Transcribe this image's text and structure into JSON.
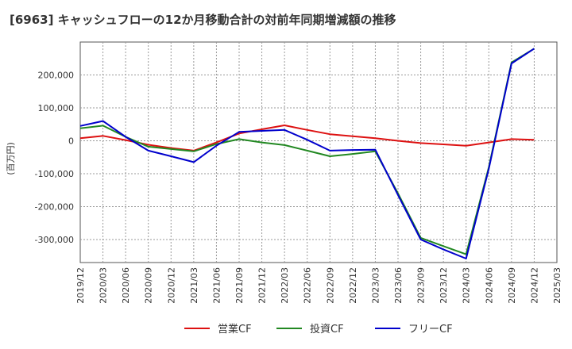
{
  "chart_data": {
    "type": "line",
    "title": "[6963]  キャッシュフローの12か月移動合計の対前年同期増減額の推移",
    "ylabel": "(百万円)",
    "xlabel": "",
    "ylim": [
      -370000,
      300000
    ],
    "yticks": [
      200000,
      100000,
      0,
      -100000,
      -200000,
      -300000
    ],
    "ytick_labels": [
      "200,000",
      "100,000",
      "0",
      "-100,000",
      "-200,000",
      "-300,000"
    ],
    "x": [
      "2019/12",
      "2020/03",
      "2020/06",
      "2020/09",
      "2020/12",
      "2021/03",
      "2021/06",
      "2021/09",
      "2021/12",
      "2022/03",
      "2022/06",
      "2022/09",
      "2022/12",
      "2023/03",
      "2023/06",
      "2023/09",
      "2023/12",
      "2024/03",
      "2024/06",
      "2024/09",
      "2024/12",
      "2025/03"
    ],
    "grid": true,
    "legend_position": "bottom",
    "series": [
      {
        "name": "営業CF",
        "color": "#dd1111",
        "values": [
          8000,
          15000,
          2000,
          -12000,
          -22000,
          -30000,
          -5000,
          22000,
          35000,
          47000,
          33000,
          20000,
          14000,
          8000,
          0,
          -7000,
          -11000,
          -15000,
          -5000,
          5000,
          3000,
          null
        ]
      },
      {
        "name": "投資CF",
        "color": "#228822",
        "values": [
          38000,
          46000,
          12000,
          -18000,
          -25000,
          -32000,
          -10000,
          5000,
          -5000,
          -13000,
          -30000,
          -47000,
          -40000,
          -32000,
          -160000,
          -295000,
          -320000,
          -345000,
          -80000,
          238000,
          280000,
          null
        ]
      },
      {
        "name": "フリーCF",
        "color": "#0000cc",
        "values": [
          45000,
          60000,
          12000,
          -30000,
          -47000,
          -65000,
          -15000,
          27000,
          30000,
          33000,
          3000,
          -30000,
          -28000,
          -27000,
          -165000,
          -300000,
          -330000,
          -358000,
          -85000,
          235000,
          280000,
          null
        ]
      }
    ]
  }
}
